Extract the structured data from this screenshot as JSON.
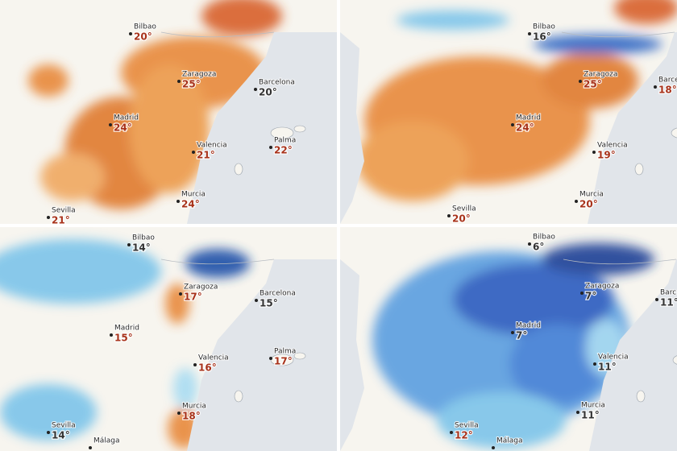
{
  "panels": [
    {
      "cities": [
        {
          "name": "Bilbao",
          "temp": "20°",
          "temp_color": "#a8321a"
        },
        {
          "name": "Zaragoza",
          "temp": "25°",
          "temp_color": "#a8321a"
        },
        {
          "name": "Barcelona",
          "temp": "20°",
          "temp_color": "#333333"
        },
        {
          "name": "Madrid",
          "temp": "24°",
          "temp_color": "#a8321a"
        },
        {
          "name": "Valencia",
          "temp": "21°",
          "temp_color": "#a8321a"
        },
        {
          "name": "Palma",
          "temp": "22°",
          "temp_color": "#a8321a"
        },
        {
          "name": "Murcia",
          "temp": "24°",
          "temp_color": "#a8321a"
        },
        {
          "name": "Sevilla",
          "temp": "21°",
          "temp_color": "#a8321a"
        }
      ]
    },
    {
      "cities": [
        {
          "name": "Bilbao",
          "temp": "16°",
          "temp_color": "#333333"
        },
        {
          "name": "Zaragoza",
          "temp": "25°",
          "temp_color": "#a8321a"
        },
        {
          "name": "Barce",
          "temp": "18°",
          "temp_color": "#a8321a"
        },
        {
          "name": "Madrid",
          "temp": "24°",
          "temp_color": "#a8321a"
        },
        {
          "name": "Valencia",
          "temp": "19°",
          "temp_color": "#a8321a"
        },
        {
          "name": "Murcia",
          "temp": "20°",
          "temp_color": "#a8321a"
        },
        {
          "name": "Sevilla",
          "temp": "20°",
          "temp_color": "#a8321a"
        }
      ]
    },
    {
      "cities": [
        {
          "name": "Bilbao",
          "temp": "14°",
          "temp_color": "#333333"
        },
        {
          "name": "Zaragoza",
          "temp": "17°",
          "temp_color": "#a8321a"
        },
        {
          "name": "Barcelona",
          "temp": "15°",
          "temp_color": "#333333"
        },
        {
          "name": "Madrid",
          "temp": "15°",
          "temp_color": "#a8321a"
        },
        {
          "name": "Valencia",
          "temp": "16°",
          "temp_color": "#a8321a"
        },
        {
          "name": "Palma",
          "temp": "17°",
          "temp_color": "#a8321a"
        },
        {
          "name": "Murcia",
          "temp": "18°",
          "temp_color": "#a8321a"
        },
        {
          "name": "Sevilla",
          "temp": "14°",
          "temp_color": "#333333"
        },
        {
          "name": "Málaga"
        }
      ]
    },
    {
      "cities": [
        {
          "name": "Bilbao",
          "temp": "6°",
          "temp_color": "#333333"
        },
        {
          "name": "Zaragoza",
          "temp": "7°",
          "temp_color": "#333333"
        },
        {
          "name": "Barc",
          "temp": "11°",
          "temp_color": "#333333"
        },
        {
          "name": "Madrid",
          "temp": "7°",
          "temp_color": "#333333"
        },
        {
          "name": "Valencia",
          "temp": "11°",
          "temp_color": "#333333"
        },
        {
          "name": "Murcia",
          "temp": "11°",
          "temp_color": "#333333"
        },
        {
          "name": "Sevilla",
          "temp": "12°",
          "temp_color": "#a8321a"
        },
        {
          "name": "Málaga"
        }
      ]
    }
  ]
}
